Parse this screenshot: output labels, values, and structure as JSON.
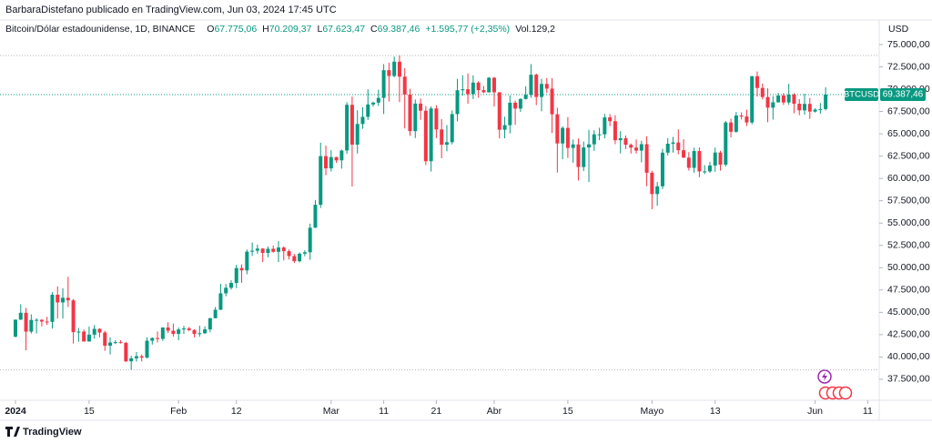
{
  "chart_data": {
    "type": "candlestick",
    "publisher": "BarbaraDistefano publicado en TradingView.com, Jun 03, 2024 17:45 UTC",
    "title": "Bitcoin/Dólar estadounidense, 1D, BINANCE",
    "ohlc_labels": [
      {
        "key": "O",
        "value": "67.775,06"
      },
      {
        "key": "H",
        "value": "70.209,37"
      },
      {
        "key": "L",
        "value": "67.623,47"
      },
      {
        "key": "C",
        "value": "69.387,46"
      }
    ],
    "change_label": "+1.595,77 (+2,35%)",
    "volume_label": "Vol.129,2",
    "currency": "USD",
    "symbol_label": "BTCUSD",
    "last_price_label": "69.387,46",
    "brand": "TradingView",
    "up_color": "#089981",
    "down_color": "#f23645",
    "ylim": [
      35150,
      77750
    ],
    "yticks": [
      {
        "value": 37500,
        "label": "37.500,00"
      },
      {
        "value": 40000,
        "label": "40.000,00"
      },
      {
        "value": 42500,
        "label": "42.500,00"
      },
      {
        "value": 45000,
        "label": "45.000,00"
      },
      {
        "value": 47500,
        "label": "47.500,00"
      },
      {
        "value": 50000,
        "label": "50.000,00"
      },
      {
        "value": 52500,
        "label": "52.500,00"
      },
      {
        "value": 55000,
        "label": "55.000,00"
      },
      {
        "value": 57500,
        "label": "57.500,00"
      },
      {
        "value": 60000,
        "label": "60.000,00"
      },
      {
        "value": 62500,
        "label": "62.500,00"
      },
      {
        "value": 65000,
        "label": "65.000,00"
      },
      {
        "value": 67500,
        "label": "67.500,00"
      },
      {
        "value": 70000,
        "label": "70.000,00"
      },
      {
        "value": 72500,
        "label": "72.500,00"
      },
      {
        "value": 75000,
        "label": "75.000,00"
      }
    ],
    "xticks": [
      {
        "value": "2024-01-01",
        "label": "2024"
      },
      {
        "value": "2024-01-15",
        "label": "15"
      },
      {
        "value": "2024-02-01",
        "label": "Feb"
      },
      {
        "value": "2024-02-12",
        "label": "12"
      },
      {
        "value": "2024-03-01",
        "label": "Mar"
      },
      {
        "value": "2024-03-11",
        "label": "11"
      },
      {
        "value": "2024-03-21",
        "label": "21"
      },
      {
        "value": "2024-04-01",
        "label": "Abr"
      },
      {
        "value": "2024-04-15",
        "label": "15"
      },
      {
        "value": "2024-05-01",
        "label": "Mayo"
      },
      {
        "value": "2024-05-13",
        "label": "13"
      },
      {
        "value": "2024-06-01",
        "label": "Jun"
      },
      {
        "value": "2024-06-11",
        "label": "11"
      }
    ],
    "x": [
      "2024-01-01",
      "2024-01-02",
      "2024-01-03",
      "2024-01-04",
      "2024-01-05",
      "2024-01-06",
      "2024-01-07",
      "2024-01-08",
      "2024-01-09",
      "2024-01-10",
      "2024-01-11",
      "2024-01-12",
      "2024-01-13",
      "2024-01-14",
      "2024-01-15",
      "2024-01-16",
      "2024-01-17",
      "2024-01-18",
      "2024-01-19",
      "2024-01-20",
      "2024-01-21",
      "2024-01-22",
      "2024-01-23",
      "2024-01-24",
      "2024-01-25",
      "2024-01-26",
      "2024-01-27",
      "2024-01-28",
      "2024-01-29",
      "2024-01-30",
      "2024-01-31",
      "2024-02-01",
      "2024-02-02",
      "2024-02-03",
      "2024-02-04",
      "2024-02-05",
      "2024-02-06",
      "2024-02-07",
      "2024-02-08",
      "2024-02-09",
      "2024-02-10",
      "2024-02-11",
      "2024-02-12",
      "2024-02-13",
      "2024-02-14",
      "2024-02-15",
      "2024-02-16",
      "2024-02-17",
      "2024-02-18",
      "2024-02-19",
      "2024-02-20",
      "2024-02-21",
      "2024-02-22",
      "2024-02-23",
      "2024-02-24",
      "2024-02-25",
      "2024-02-26",
      "2024-02-27",
      "2024-02-28",
      "2024-02-29",
      "2024-03-01",
      "2024-03-02",
      "2024-03-03",
      "2024-03-04",
      "2024-03-05",
      "2024-03-06",
      "2024-03-07",
      "2024-03-08",
      "2024-03-09",
      "2024-03-10",
      "2024-03-11",
      "2024-03-12",
      "2024-03-13",
      "2024-03-14",
      "2024-03-15",
      "2024-03-16",
      "2024-03-17",
      "2024-03-18",
      "2024-03-19",
      "2024-03-20",
      "2024-03-21",
      "2024-03-22",
      "2024-03-23",
      "2024-03-24",
      "2024-03-25",
      "2024-03-26",
      "2024-03-27",
      "2024-03-28",
      "2024-03-29",
      "2024-03-30",
      "2024-03-31",
      "2024-04-01",
      "2024-04-02",
      "2024-04-03",
      "2024-04-04",
      "2024-04-05",
      "2024-04-06",
      "2024-04-07",
      "2024-04-08",
      "2024-04-09",
      "2024-04-10",
      "2024-04-11",
      "2024-04-12",
      "2024-04-13",
      "2024-04-14",
      "2024-04-15",
      "2024-04-16",
      "2024-04-17",
      "2024-04-18",
      "2024-04-19",
      "2024-04-20",
      "2024-04-21",
      "2024-04-22",
      "2024-04-23",
      "2024-04-24",
      "2024-04-25",
      "2024-04-26",
      "2024-04-27",
      "2024-04-28",
      "2024-04-29",
      "2024-04-30",
      "2024-05-01",
      "2024-05-02",
      "2024-05-03",
      "2024-05-04",
      "2024-05-05",
      "2024-05-06",
      "2024-05-07",
      "2024-05-08",
      "2024-05-09",
      "2024-05-10",
      "2024-05-11",
      "2024-05-12",
      "2024-05-13",
      "2024-05-14",
      "2024-05-15",
      "2024-05-16",
      "2024-05-17",
      "2024-05-18",
      "2024-05-19",
      "2024-05-20",
      "2024-05-21",
      "2024-05-22",
      "2024-05-23",
      "2024-05-24",
      "2024-05-25",
      "2024-05-26",
      "2024-05-27",
      "2024-05-28",
      "2024-05-29",
      "2024-05-30",
      "2024-05-31",
      "2024-06-01",
      "2024-06-02",
      "2024-06-03"
    ],
    "candles": [
      [
        42280,
        44190,
        42180,
        44180
      ],
      [
        44180,
        45900,
        44150,
        44950
      ],
      [
        44950,
        45500,
        40750,
        42840
      ],
      [
        42840,
        44770,
        42630,
        44150
      ],
      [
        44150,
        44340,
        42630,
        44160
      ],
      [
        44160,
        44230,
        43420,
        43970
      ],
      [
        43970,
        44500,
        43580,
        43930
      ],
      [
        43930,
        47250,
        43180,
        46970
      ],
      [
        46970,
        47900,
        44300,
        46110
      ],
      [
        46110,
        47700,
        44300,
        46630
      ],
      [
        46630,
        48970,
        45600,
        46340
      ],
      [
        46340,
        46500,
        41500,
        42780
      ],
      [
        42780,
        43250,
        41700,
        42840
      ],
      [
        42840,
        43080,
        41720,
        41730
      ],
      [
        41730,
        43400,
        41720,
        42500
      ],
      [
        42500,
        43580,
        42050,
        43150
      ],
      [
        43150,
        43200,
        42200,
        42740
      ],
      [
        42740,
        42930,
        40680,
        41260
      ],
      [
        41260,
        42180,
        40280,
        41620
      ],
      [
        41620,
        41870,
        41440,
        41660
      ],
      [
        41660,
        41890,
        41500,
        41580
      ],
      [
        41580,
        41690,
        39430,
        39510
      ],
      [
        39510,
        40130,
        38550,
        39850
      ],
      [
        39850,
        40550,
        39480,
        40080
      ],
      [
        40080,
        40280,
        39500,
        39930
      ],
      [
        39930,
        42200,
        39820,
        41820
      ],
      [
        41820,
        42200,
        41390,
        42120
      ],
      [
        42120,
        42850,
        41620,
        42030
      ],
      [
        42030,
        43300,
        41800,
        43300
      ],
      [
        43300,
        43880,
        42680,
        42940
      ],
      [
        42940,
        43740,
        42280,
        42580
      ],
      [
        42580,
        43290,
        41880,
        43080
      ],
      [
        43080,
        43480,
        42580,
        43190
      ],
      [
        43190,
        43380,
        42880,
        43010
      ],
      [
        43010,
        43120,
        42200,
        42580
      ],
      [
        42580,
        43500,
        42260,
        42660
      ],
      [
        42660,
        43420,
        42570,
        43090
      ],
      [
        43090,
        44390,
        42780,
        44340
      ],
      [
        44340,
        45600,
        44330,
        45290
      ],
      [
        45290,
        48200,
        45250,
        47130
      ],
      [
        47130,
        48170,
        46800,
        47750
      ],
      [
        47750,
        48590,
        47550,
        48290
      ],
      [
        48290,
        50330,
        47710,
        49960
      ],
      [
        49960,
        50370,
        48300,
        49700
      ],
      [
        49700,
        52040,
        49270,
        51800
      ],
      [
        51800,
        52820,
        51320,
        51910
      ],
      [
        51910,
        52580,
        51570,
        52140
      ],
      [
        52140,
        52200,
        50630,
        51660
      ],
      [
        51660,
        52380,
        51170,
        52120
      ],
      [
        52120,
        52490,
        51680,
        51780
      ],
      [
        51780,
        52990,
        50630,
        52260
      ],
      [
        52260,
        52380,
        50820,
        51850
      ],
      [
        51850,
        52050,
        50920,
        51300
      ],
      [
        51300,
        51550,
        50520,
        50730
      ],
      [
        50730,
        51700,
        50580,
        51570
      ],
      [
        51570,
        51950,
        51280,
        51730
      ],
      [
        51730,
        54930,
        50900,
        54480
      ],
      [
        54480,
        57590,
        54450,
        57050
      ],
      [
        57050,
        64000,
        56690,
        62500
      ],
      [
        62500,
        63680,
        60360,
        61130
      ],
      [
        61130,
        63160,
        60780,
        62390
      ],
      [
        62390,
        62430,
        61750,
        62030
      ],
      [
        62030,
        63230,
        61100,
        63130
      ],
      [
        63130,
        68540,
        62770,
        68250
      ],
      [
        68250,
        69170,
        59100,
        63790
      ],
      [
        63790,
        67640,
        62790,
        66100
      ],
      [
        66100,
        67990,
        65560,
        66900
      ],
      [
        66900,
        69980,
        66560,
        68290
      ],
      [
        68290,
        68590,
        68050,
        68490
      ],
      [
        68490,
        69950,
        68120,
        69020
      ],
      [
        69020,
        72800,
        67210,
        72130
      ],
      [
        72130,
        72970,
        68620,
        71480
      ],
      [
        71480,
        73650,
        71330,
        73080
      ],
      [
        73080,
        73780,
        68550,
        71400
      ],
      [
        71400,
        72360,
        65600,
        69400
      ],
      [
        69400,
        70040,
        64780,
        65300
      ],
      [
        65300,
        68850,
        64530,
        68390
      ],
      [
        68390,
        68950,
        66570,
        67590
      ],
      [
        67590,
        68120,
        61500,
        61930
      ],
      [
        61930,
        68080,
        60780,
        67840
      ],
      [
        67840,
        68200,
        64520,
        65490
      ],
      [
        65490,
        66650,
        62260,
        63780
      ],
      [
        63780,
        65980,
        63040,
        64060
      ],
      [
        64060,
        67620,
        63820,
        67210
      ],
      [
        67210,
        71150,
        66390,
        69880
      ],
      [
        69880,
        71560,
        69280,
        69990
      ],
      [
        69990,
        71770,
        68370,
        69450
      ],
      [
        69450,
        71550,
        68900,
        70740
      ],
      [
        70740,
        70900,
        69050,
        69890
      ],
      [
        69890,
        70350,
        69560,
        69650
      ],
      [
        69650,
        71370,
        69620,
        71280
      ],
      [
        71280,
        71370,
        68060,
        69650
      ],
      [
        69650,
        69670,
        64490,
        65460
      ],
      [
        65460,
        66910,
        64500,
        65970
      ],
      [
        65970,
        69290,
        65050,
        68490
      ],
      [
        68490,
        68730,
        66000,
        67830
      ],
      [
        67830,
        69000,
        67450,
        68900
      ],
      [
        68900,
        70330,
        68840,
        69360
      ],
      [
        69360,
        72800,
        69040,
        71620
      ],
      [
        71620,
        71760,
        68210,
        69130
      ],
      [
        69130,
        71170,
        67520,
        70590
      ],
      [
        70590,
        71260,
        69570,
        70060
      ],
      [
        70060,
        71230,
        65090,
        67190
      ],
      [
        67190,
        67930,
        60660,
        63920
      ],
      [
        63920,
        65840,
        62140,
        65660
      ],
      [
        65660,
        66880,
        62300,
        63420
      ],
      [
        63420,
        64360,
        61760,
        63810
      ],
      [
        63810,
        64480,
        59770,
        61280
      ],
      [
        61280,
        64130,
        60830,
        63470
      ],
      [
        63470,
        65450,
        59600,
        63820
      ],
      [
        63820,
        65400,
        63090,
        64940
      ],
      [
        64940,
        65680,
        64280,
        64940
      ],
      [
        64940,
        67230,
        64500,
        66840
      ],
      [
        66840,
        67200,
        65850,
        66410
      ],
      [
        66410,
        67080,
        63840,
        64280
      ],
      [
        64280,
        65300,
        62800,
        64500
      ],
      [
        64500,
        64800,
        63300,
        63770
      ],
      [
        63770,
        63920,
        62790,
        63460
      ],
      [
        63460,
        64370,
        62800,
        63120
      ],
      [
        63120,
        64230,
        61800,
        63840
      ],
      [
        63840,
        64730,
        59120,
        60640
      ],
      [
        60640,
        60860,
        56550,
        58250
      ],
      [
        58250,
        59600,
        56940,
        59120
      ],
      [
        59120,
        63330,
        58820,
        62890
      ],
      [
        62890,
        64500,
        62580,
        63890
      ],
      [
        63890,
        64650,
        62900,
        64030
      ],
      [
        64030,
        65500,
        62700,
        63160
      ],
      [
        63160,
        64400,
        62300,
        62330
      ],
      [
        62330,
        62950,
        60880,
        61190
      ],
      [
        61190,
        63450,
        60640,
        63070
      ],
      [
        63070,
        63470,
        60150,
        60790
      ],
      [
        60790,
        61490,
        60490,
        60790
      ],
      [
        60790,
        61850,
        60630,
        61450
      ],
      [
        61450,
        63450,
        60750,
        62900
      ],
      [
        62900,
        63100,
        60880,
        61550
      ],
      [
        61550,
        66440,
        61330,
        66270
      ],
      [
        66270,
        66700,
        64600,
        65230
      ],
      [
        65230,
        67440,
        65120,
        67050
      ],
      [
        67050,
        67400,
        66600,
        66940
      ],
      [
        66940,
        67700,
        65860,
        66270
      ],
      [
        66270,
        71500,
        66060,
        71450
      ],
      [
        71450,
        71980,
        69160,
        70140
      ],
      [
        70140,
        70620,
        68850,
        69120
      ],
      [
        69120,
        70100,
        66300,
        67930
      ],
      [
        67930,
        69220,
        66600,
        68530
      ],
      [
        68530,
        69580,
        68500,
        69290
      ],
      [
        69290,
        69560,
        68230,
        68510
      ],
      [
        68510,
        70600,
        68250,
        69390
      ],
      [
        69390,
        69560,
        67300,
        68370
      ],
      [
        68370,
        68880,
        67080,
        67630
      ],
      [
        67630,
        69500,
        67140,
        68350
      ],
      [
        68350,
        69020,
        66670,
        67490
      ],
      [
        67490,
        67860,
        67390,
        67710
      ],
      [
        67710,
        68450,
        67260,
        67770
      ],
      [
        67775.06,
        70209.37,
        67623.47,
        69387.46
      ]
    ]
  }
}
